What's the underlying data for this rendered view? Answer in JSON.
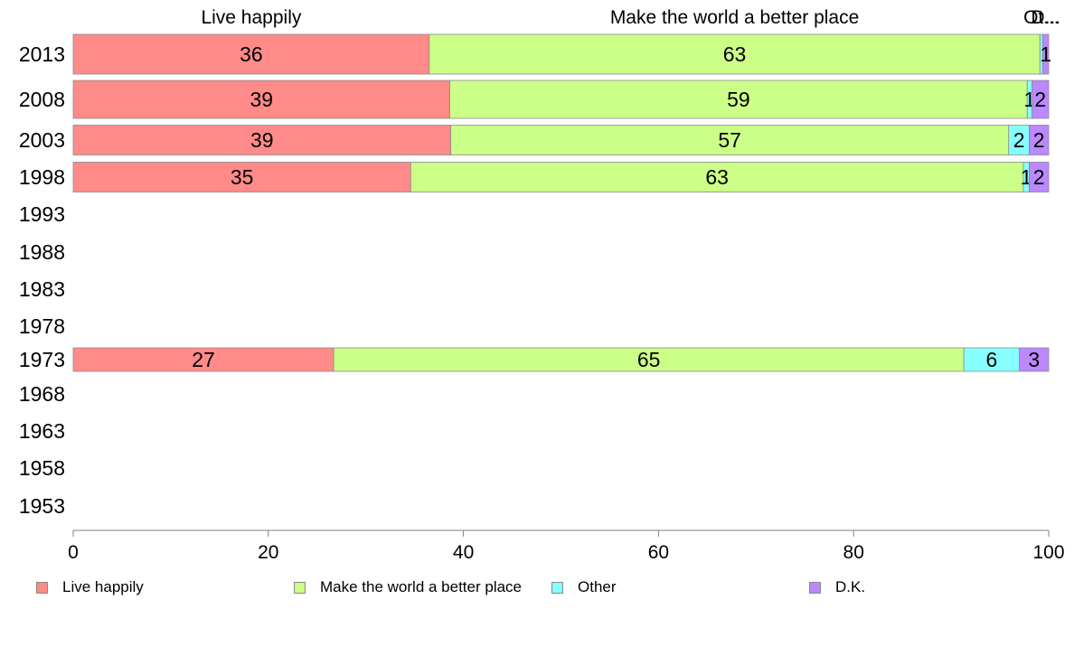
{
  "chart_data": {
    "type": "bar",
    "orientation": "horizontal",
    "stacked": true,
    "categories": [
      "2013",
      "2008",
      "2003",
      "1998",
      "1993",
      "1988",
      "1983",
      "1978",
      "1973",
      "1968",
      "1963",
      "1958",
      "1953"
    ],
    "series": [
      {
        "name": "Live happily",
        "color": "#ff8a8a",
        "values": [
          36.5,
          38.6,
          38.7,
          34.6,
          null,
          null,
          null,
          null,
          26.7,
          null,
          null,
          null,
          null
        ],
        "labels": [
          "36",
          "39",
          "39",
          "35",
          "",
          "",
          "",
          "",
          "27",
          "",
          "",
          "",
          ""
        ]
      },
      {
        "name": "Make the world a better place",
        "color": "#ccff88",
        "values": [
          62.6,
          59.2,
          57.2,
          62.8,
          null,
          null,
          null,
          null,
          64.6,
          null,
          null,
          null,
          null
        ],
        "labels": [
          "63",
          "59",
          "57",
          "63",
          "",
          "",
          "",
          "",
          "65",
          "",
          "",
          "",
          ""
        ]
      },
      {
        "name": "Other",
        "color": "#88ffff",
        "values": [
          0.3,
          0.5,
          2.1,
          0.6,
          null,
          null,
          null,
          null,
          5.7,
          null,
          null,
          null,
          null
        ],
        "labels": [
          "",
          "1",
          "2",
          "1",
          "",
          "",
          "",
          "",
          "6",
          "",
          "",
          "",
          ""
        ]
      },
      {
        "name": "D.K.",
        "color": "#bb88ff",
        "values": [
          0.6,
          1.7,
          2.0,
          2.0,
          null,
          null,
          null,
          null,
          3.0,
          null,
          null,
          null,
          null
        ],
        "labels": [
          "1",
          "2",
          "2",
          "2",
          "",
          "",
          "",
          "",
          "3",
          "",
          "",
          "",
          ""
        ]
      }
    ],
    "column_headers": [
      "Live happily",
      "Make the world a better place",
      "Ot...",
      "D..."
    ],
    "xlim": [
      0,
      100
    ],
    "xticks": [
      0,
      20,
      40,
      60,
      80,
      100
    ],
    "grid": false,
    "legend_position": "bottom"
  }
}
